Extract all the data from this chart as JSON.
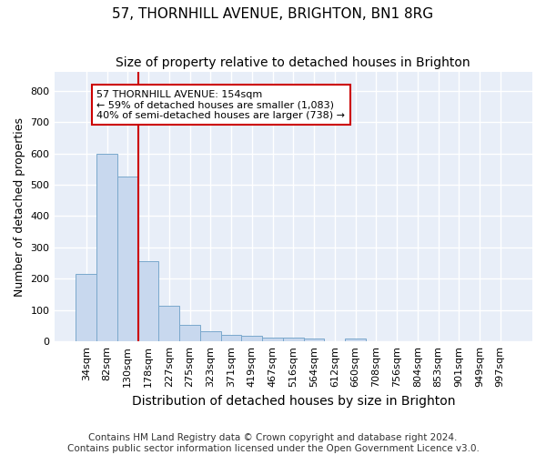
{
  "title": "57, THORNHILL AVENUE, BRIGHTON, BN1 8RG",
  "subtitle": "Size of property relative to detached houses in Brighton",
  "xlabel": "Distribution of detached houses by size in Brighton",
  "ylabel": "Number of detached properties",
  "footnote1": "Contains HM Land Registry data © Crown copyright and database right 2024.",
  "footnote2": "Contains public sector information licensed under the Open Government Licence v3.0.",
  "bar_labels": [
    "34sqm",
    "82sqm",
    "130sqm",
    "178sqm",
    "227sqm",
    "275sqm",
    "323sqm",
    "371sqm",
    "419sqm",
    "467sqm",
    "516sqm",
    "564sqm",
    "612sqm",
    "660sqm",
    "708sqm",
    "756sqm",
    "804sqm",
    "853sqm",
    "901sqm",
    "949sqm",
    "997sqm"
  ],
  "bar_values": [
    215,
    600,
    525,
    255,
    115,
    52,
    33,
    20,
    18,
    13,
    12,
    8,
    0,
    8,
    0,
    0,
    0,
    0,
    0,
    0,
    0
  ],
  "bar_color": "#c8d8ee",
  "bar_edge_color": "#7aa8cc",
  "red_line_bar_index": 2,
  "annotation_line1": "57 THORNHILL AVENUE: 154sqm",
  "annotation_line2": "← 59% of detached houses are smaller (1,083)",
  "annotation_line3": "40% of semi-detached houses are larger (738) →",
  "annotation_box_color": "#ffffff",
  "annotation_box_edge": "#cc0000",
  "ylim": [
    0,
    860
  ],
  "yticks": [
    0,
    100,
    200,
    300,
    400,
    500,
    600,
    700,
    800
  ],
  "fig_bg": "#ffffff",
  "plot_bg": "#e8eef8",
  "grid_color": "#ffffff",
  "title_fontsize": 11,
  "subtitle_fontsize": 10,
  "tick_fontsize": 8,
  "ylabel_fontsize": 9,
  "xlabel_fontsize": 10,
  "footnote_fontsize": 7.5
}
